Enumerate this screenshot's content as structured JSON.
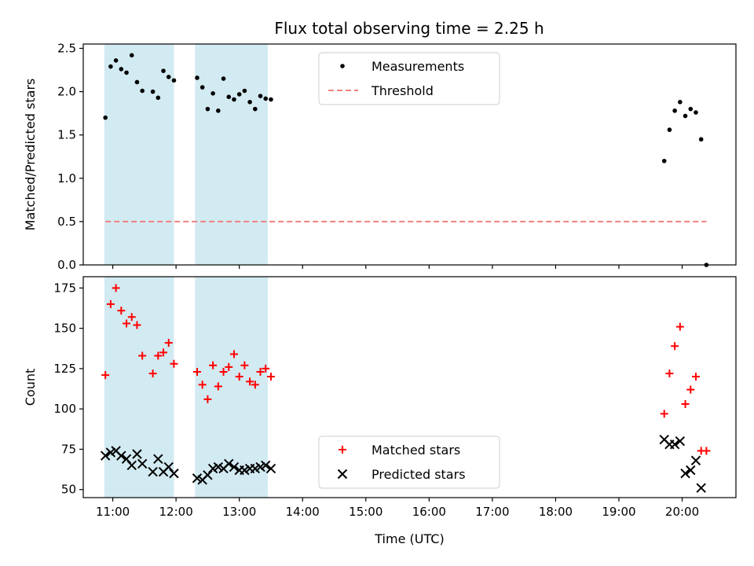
{
  "figure": {
    "title": "Flux total observing time = 2.25 h"
  },
  "chart_data": [
    {
      "type": "scatter",
      "ylabel": "Matched/Predicted stars",
      "xlabel": "",
      "xlim": [
        "10:32",
        "20:51"
      ],
      "ylim": [
        0,
        2.55
      ],
      "yticks": [
        0,
        0.5,
        1.0,
        1.5,
        2.0,
        2.5
      ],
      "ytick_labels": [
        "0.0",
        "0.5",
        "1.0",
        "1.5",
        "2.0",
        "2.5"
      ],
      "shaded_intervals": [
        [
          "10:52",
          "11:58"
        ],
        [
          "12:18",
          "13:27"
        ]
      ],
      "legend_position": "top-center",
      "series": [
        {
          "name": "Measurements",
          "marker": "dot",
          "color": "#000000",
          "points": [
            [
              "10:53",
              1.7
            ],
            [
              "10:58",
              2.29
            ],
            [
              "11:03",
              2.36
            ],
            [
              "11:08",
              2.26
            ],
            [
              "11:13",
              2.22
            ],
            [
              "11:18",
              2.42
            ],
            [
              "11:23",
              2.11
            ],
            [
              "11:28",
              2.01
            ],
            [
              "11:38",
              2.0
            ],
            [
              "11:43",
              1.93
            ],
            [
              "11:48",
              2.24
            ],
            [
              "11:53",
              2.17
            ],
            [
              "11:58",
              2.13
            ],
            [
              "12:20",
              2.16
            ],
            [
              "12:25",
              2.05
            ],
            [
              "12:30",
              1.8
            ],
            [
              "12:35",
              1.98
            ],
            [
              "12:40",
              1.78
            ],
            [
              "12:45",
              2.15
            ],
            [
              "12:50",
              1.94
            ],
            [
              "12:55",
              1.91
            ],
            [
              "13:00",
              1.97
            ],
            [
              "13:05",
              2.01
            ],
            [
              "13:10",
              1.88
            ],
            [
              "13:15",
              1.8
            ],
            [
              "13:20",
              1.95
            ],
            [
              "13:25",
              1.92
            ],
            [
              "13:30",
              1.91
            ],
            [
              "19:43",
              1.2
            ],
            [
              "19:48",
              1.56
            ],
            [
              "19:53",
              1.78
            ],
            [
              "19:58",
              1.88
            ],
            [
              "20:03",
              1.72
            ],
            [
              "20:08",
              1.8
            ],
            [
              "20:13",
              1.76
            ],
            [
              "20:18",
              1.45
            ],
            [
              "20:23",
              0.0
            ]
          ]
        },
        {
          "name": "Threshold",
          "type": "line",
          "style": "dashed",
          "color": "#f08080",
          "points": [
            [
              "10:53",
              0.5
            ],
            [
              "20:23",
              0.5
            ]
          ]
        }
      ]
    },
    {
      "type": "scatter",
      "ylabel": "Count",
      "xlabel": "Time (UTC)",
      "xlim": [
        "10:32",
        "20:51"
      ],
      "ylim": [
        45,
        182
      ],
      "yticks": [
        50,
        75,
        100,
        125,
        150,
        175
      ],
      "ytick_labels": [
        "50",
        "75",
        "100",
        "125",
        "150",
        "175"
      ],
      "xticks": [
        "11:00",
        "12:00",
        "13:00",
        "14:00",
        "15:00",
        "16:00",
        "17:00",
        "18:00",
        "19:00",
        "20:00"
      ],
      "xtick_labels": [
        "11:00",
        "12:00",
        "13:00",
        "14:00",
        "15:00",
        "16:00",
        "17:00",
        "18:00",
        "19:00",
        "20:00"
      ],
      "shaded_intervals": [
        [
          "10:52",
          "11:58"
        ],
        [
          "12:18",
          "13:27"
        ]
      ],
      "legend_position": "bottom-center",
      "series": [
        {
          "name": "Matched stars",
          "marker": "plus",
          "color": "#ff0000",
          "points": [
            [
              "10:53",
              121
            ],
            [
              "10:58",
              165
            ],
            [
              "11:03",
              175
            ],
            [
              "11:08",
              161
            ],
            [
              "11:13",
              153
            ],
            [
              "11:18",
              157
            ],
            [
              "11:23",
              152
            ],
            [
              "11:28",
              133
            ],
            [
              "11:38",
              122
            ],
            [
              "11:43",
              133
            ],
            [
              "11:48",
              135
            ],
            [
              "11:53",
              141
            ],
            [
              "11:58",
              128
            ],
            [
              "12:20",
              123
            ],
            [
              "12:25",
              115
            ],
            [
              "12:30",
              106
            ],
            [
              "12:35",
              127
            ],
            [
              "12:40",
              114
            ],
            [
              "12:45",
              123
            ],
            [
              "12:50",
              126
            ],
            [
              "12:55",
              134
            ],
            [
              "13:00",
              120
            ],
            [
              "13:05",
              127
            ],
            [
              "13:10",
              117
            ],
            [
              "13:15",
              115
            ],
            [
              "13:20",
              123
            ],
            [
              "13:25",
              125
            ],
            [
              "13:30",
              120
            ],
            [
              "19:43",
              97
            ],
            [
              "19:48",
              122
            ],
            [
              "19:53",
              139
            ],
            [
              "19:58",
              151
            ],
            [
              "20:03",
              103
            ],
            [
              "20:08",
              112
            ],
            [
              "20:13",
              120
            ],
            [
              "20:18",
              74
            ],
            [
              "20:23",
              74
            ]
          ]
        },
        {
          "name": "Predicted stars",
          "marker": "x",
          "color": "#000000",
          "points": [
            [
              "10:53",
              71
            ],
            [
              "10:58",
              73
            ],
            [
              "11:03",
              74
            ],
            [
              "11:08",
              71
            ],
            [
              "11:13",
              69
            ],
            [
              "11:18",
              65
            ],
            [
              "11:23",
              72
            ],
            [
              "11:28",
              66
            ],
            [
              "11:38",
              61
            ],
            [
              "11:43",
              69
            ],
            [
              "11:48",
              61
            ],
            [
              "11:53",
              64
            ],
            [
              "11:58",
              60
            ],
            [
              "12:20",
              57
            ],
            [
              "12:25",
              56
            ],
            [
              "12:30",
              59
            ],
            [
              "12:35",
              63
            ],
            [
              "12:40",
              64
            ],
            [
              "12:45",
              63
            ],
            [
              "12:50",
              66
            ],
            [
              "12:55",
              64
            ],
            [
              "13:00",
              62
            ],
            [
              "13:05",
              62
            ],
            [
              "13:10",
              63
            ],
            [
              "13:15",
              63
            ],
            [
              "13:20",
              64
            ],
            [
              "13:25",
              65
            ],
            [
              "13:30",
              63
            ],
            [
              "19:43",
              81
            ],
            [
              "19:48",
              78
            ],
            [
              "19:53",
              78
            ],
            [
              "19:58",
              80
            ],
            [
              "20:03",
              60
            ],
            [
              "20:08",
              62
            ],
            [
              "20:13",
              68
            ],
            [
              "20:18",
              51
            ]
          ]
        }
      ]
    }
  ],
  "colors": {
    "shade": "#add8e6",
    "threshold": "#f08080",
    "matched": "#ff0000",
    "predicted": "#000000",
    "measurement": "#000000"
  }
}
